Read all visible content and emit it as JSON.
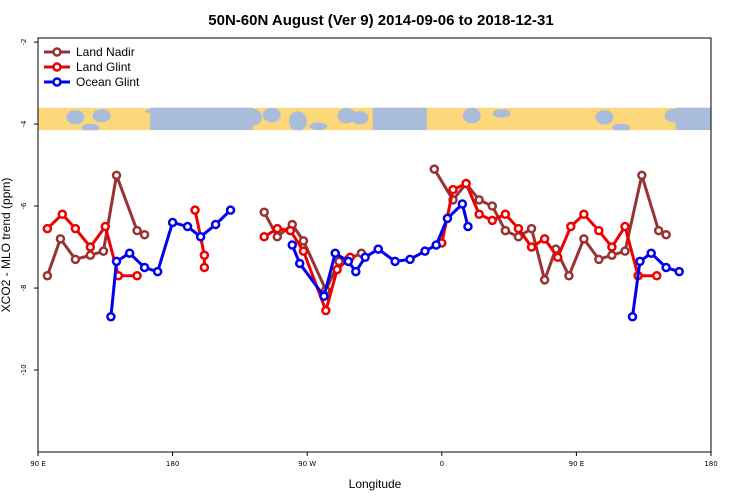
{
  "chart_data": {
    "type": "line",
    "title": "50N-60N August (Ver 9)   2014-09-06 to 2018-12-31",
    "xlabel": "Longitude",
    "ylabel": "XCO2 - MLO trend (ppm)",
    "xlim": [
      90,
      450
    ],
    "ylim": [
      -12,
      -1.9
    ],
    "x_ticks": [
      {
        "value": 90,
        "label": "90 E"
      },
      {
        "value": 162,
        "label": "180"
      },
      {
        "value": 234,
        "label": "90 W"
      },
      {
        "value": 306,
        "label": "0"
      },
      {
        "value": 378,
        "label": "90 E"
      },
      {
        "value": 450,
        "label": "180"
      }
    ],
    "y_ticks": [
      {
        "value": -2,
        "label": "-2"
      },
      {
        "value": -4,
        "label": "-4"
      },
      {
        "value": -6,
        "label": "-6"
      },
      {
        "value": -8,
        "label": "-8"
      },
      {
        "value": -10,
        "label": "-10"
      }
    ],
    "grid": false,
    "legend_position": "top-left",
    "map_band": {
      "ymin": -4.15,
      "ymax": -3.6,
      "ocean_color": "#a9bcdc",
      "land_color": "#fdd87a"
    },
    "series": [
      {
        "name": "Land Nadir",
        "color": "#993333",
        "segments": [
          [
            [
              95,
              -7.7
            ],
            [
              102,
              -6.8
            ],
            [
              110,
              -7.3
            ],
            [
              118,
              -7.2
            ],
            [
              125,
              -7.1
            ],
            [
              132,
              -5.25
            ],
            [
              143,
              -6.6
            ],
            [
              147,
              -6.7
            ]
          ],
          [
            [
              211,
              -6.15
            ],
            [
              218,
              -6.75
            ],
            [
              226,
              -6.45
            ],
            [
              232,
              -6.85
            ],
            [
              244,
              -8.05
            ],
            [
              251,
              -7.35
            ],
            [
              256,
              -7.3
            ],
            [
              263,
              -7.15
            ]
          ],
          [
            [
              302,
              -5.1
            ],
            [
              312,
              -5.85
            ],
            [
              319,
              -5.45
            ],
            [
              326,
              -5.85
            ],
            [
              333,
              -6.0
            ],
            [
              340,
              -6.6
            ],
            [
              347,
              -6.75
            ],
            [
              354,
              -6.55
            ],
            [
              361,
              -7.8
            ],
            [
              367,
              -7.05
            ],
            [
              374,
              -7.7
            ],
            [
              382,
              -6.8
            ],
            [
              390,
              -7.3
            ],
            [
              397,
              -7.2
            ],
            [
              404,
              -7.1
            ],
            [
              413,
              -5.25
            ],
            [
              422,
              -6.6
            ],
            [
              426,
              -6.7
            ]
          ]
        ]
      },
      {
        "name": "Land Glint",
        "color": "#ee0000",
        "segments": [
          [
            [
              95,
              -6.55
            ],
            [
              103,
              -6.2
            ],
            [
              110,
              -6.55
            ],
            [
              118,
              -7.0
            ],
            [
              126,
              -6.5
            ],
            [
              133,
              -7.7
            ],
            [
              143,
              -7.7
            ]
          ],
          [
            [
              174,
              -6.1
            ],
            [
              179,
              -7.2
            ],
            [
              179,
              -7.5
            ]
          ],
          [
            [
              211,
              -6.75
            ],
            [
              218,
              -6.55
            ],
            [
              225,
              -6.6
            ],
            [
              232,
              -7.1
            ],
            [
              244,
              -8.55
            ],
            [
              250,
              -7.55
            ],
            [
              257,
              -7.25
            ]
          ],
          [
            [
              306,
              -6.9
            ],
            [
              312,
              -5.6
            ],
            [
              319,
              -5.45
            ],
            [
              326,
              -6.2
            ],
            [
              333,
              -6.35
            ],
            [
              340,
              -6.2
            ],
            [
              347,
              -6.55
            ],
            [
              354,
              -7.0
            ],
            [
              361,
              -6.8
            ],
            [
              368,
              -7.25
            ],
            [
              375,
              -6.5
            ],
            [
              382,
              -6.2
            ],
            [
              390,
              -6.6
            ],
            [
              397,
              -7.0
            ],
            [
              404,
              -6.5
            ],
            [
              411,
              -7.7
            ],
            [
              421,
              -7.7
            ]
          ]
        ]
      },
      {
        "name": "Ocean Glint",
        "color": "#0000ee",
        "segments": [
          [
            [
              129,
              -8.7
            ],
            [
              132,
              -7.35
            ],
            [
              139,
              -7.15
            ],
            [
              147,
              -7.5
            ],
            [
              154,
              -7.6
            ],
            [
              162,
              -6.4
            ],
            [
              170,
              -6.5
            ],
            [
              177,
              -6.75
            ],
            [
              185,
              -6.45
            ],
            [
              193,
              -6.1
            ]
          ],
          [
            [
              226,
              -6.95
            ],
            [
              230,
              -7.4
            ],
            [
              243,
              -8.2
            ],
            [
              249,
              -7.15
            ],
            [
              256,
              -7.35
            ],
            [
              260,
              -7.6
            ],
            [
              265,
              -7.25
            ],
            [
              272,
              -7.05
            ],
            [
              281,
              -7.35
            ],
            [
              289,
              -7.3
            ],
            [
              297,
              -7.1
            ],
            [
              303,
              -6.95
            ],
            [
              309,
              -6.3
            ],
            [
              317,
              -5.95
            ],
            [
              320,
              -6.5
            ]
          ],
          [
            [
              408,
              -8.7
            ],
            [
              412,
              -7.35
            ],
            [
              418,
              -7.15
            ],
            [
              426,
              -7.5
            ],
            [
              433,
              -7.6
            ]
          ]
        ]
      }
    ]
  }
}
